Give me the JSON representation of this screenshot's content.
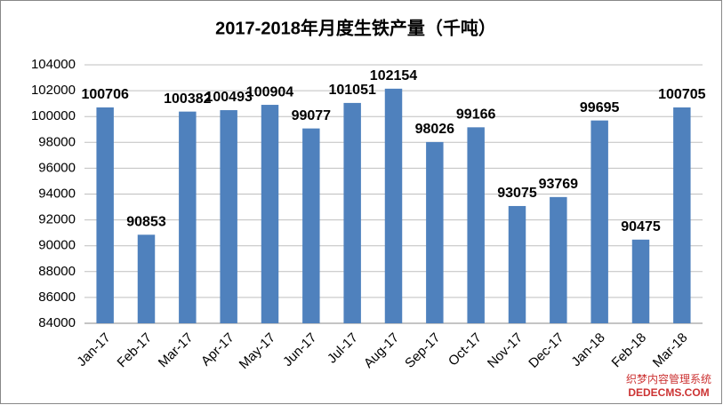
{
  "chart_data": {
    "type": "bar",
    "title": "2017-2018年月度生铁产量（千吨）",
    "categories": [
      "Jan-17",
      "Feb-17",
      "Mar-17",
      "Apr-17",
      "May-17",
      "Jun-17",
      "Jul-17",
      "Aug-17",
      "Sep-17",
      "Oct-17",
      "Nov-17",
      "Dec-17",
      "Jan-18",
      "Feb-18",
      "Mar-18"
    ],
    "values": [
      100706,
      90853,
      100382,
      100493,
      100904,
      99077,
      101051,
      102154,
      98026,
      99166,
      93075,
      93769,
      99695,
      90475,
      100705
    ],
    "color": "#4f81bd",
    "ylim": [
      84000,
      104000
    ],
    "yticks": [
      84000,
      86000,
      88000,
      90000,
      92000,
      94000,
      96000,
      98000,
      100000,
      102000,
      104000
    ],
    "grid": true
  },
  "watermark": {
    "line1": "织梦内容管理系统",
    "line2": "DEDECMS.COM"
  }
}
